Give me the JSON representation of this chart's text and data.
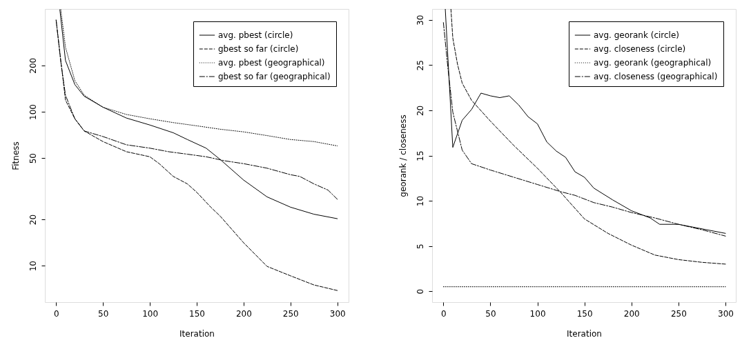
{
  "chart_data": [
    {
      "type": "line",
      "xlabel": "Iteration",
      "ylabel": "Fitness",
      "log": "y",
      "grid": false,
      "legend": "top right",
      "marker": "none",
      "xlim": [
        -12,
        312
      ],
      "ylim": [
        5.8,
        465
      ],
      "xticks": [
        0,
        50,
        100,
        150,
        200,
        250,
        300
      ],
      "yticks": [
        10,
        20,
        50,
        100,
        200
      ],
      "series": [
        {
          "name": "avg. pbest (circle)",
          "color": "#000000",
          "line_style": "solid",
          "x": [
            4,
            10,
            20,
            30,
            50,
            75,
            100,
            125,
            140,
            160,
            175,
            200,
            225,
            250,
            275,
            300
          ],
          "values": [
            460,
            215,
            150,
            126,
            107,
            91,
            82,
            73,
            66,
            58,
            49,
            36,
            28,
            24,
            21.6,
            20.2
          ]
        },
        {
          "name": "gbest so far (circle)",
          "color": "#000000",
          "line_style": "dashed",
          "x": [
            0,
            5,
            10,
            20,
            30,
            50,
            75,
            100,
            110,
            125,
            140,
            150,
            165,
            175,
            200,
            225,
            250,
            275,
            300
          ],
          "values": [
            394,
            215,
            119,
            90,
            75,
            64,
            55,
            51,
            46,
            38,
            34,
            30,
            24,
            21,
            14.1,
            9.9,
            8.6,
            7.5,
            6.9
          ]
        },
        {
          "name": "avg. pbest (geographical)",
          "color": "#000000",
          "line_style": "dotted",
          "x": [
            5,
            10,
            20,
            30,
            50,
            75,
            100,
            125,
            150,
            175,
            200,
            225,
            250,
            275,
            300
          ],
          "values": [
            460,
            262,
            159,
            128,
            107,
            96,
            90,
            85,
            81,
            77,
            74,
            70,
            66,
            64,
            60
          ]
        },
        {
          "name": "gbest so far (geographical)",
          "color": "#000000",
          "line_style": "dashdot",
          "x": [
            0,
            5,
            10,
            20,
            30,
            50,
            75,
            100,
            120,
            140,
            160,
            180,
            200,
            225,
            250,
            260,
            275,
            290,
            300
          ],
          "values": [
            394,
            211,
            128,
            90,
            75,
            69,
            61,
            58,
            55,
            53,
            51,
            48,
            46,
            43,
            39,
            38,
            34,
            31,
            27
          ]
        }
      ]
    },
    {
      "type": "line",
      "xlabel": "Iteration",
      "ylabel": "georank / closeness",
      "grid": false,
      "legend": "top right",
      "marker": "none",
      "xlim": [
        -12,
        311
      ],
      "ylim": [
        -1.2,
        31.2
      ],
      "xticks": [
        0,
        50,
        100,
        150,
        200,
        250,
        300
      ],
      "yticks": [
        0,
        5,
        10,
        15,
        20,
        25,
        30
      ],
      "series": [
        {
          "name": "avg. georank (circle)",
          "color": "#000000",
          "line_style": "solid",
          "x": [
            2,
            10,
            20,
            30,
            40,
            50,
            60,
            70,
            80,
            90,
            100,
            110,
            120,
            130,
            140,
            150,
            160,
            180,
            200,
            220,
            230,
            250,
            275,
            300
          ],
          "values": [
            31.2,
            15.9,
            18.9,
            20.1,
            21.9,
            21.6,
            21.4,
            21.6,
            20.6,
            19.3,
            18.5,
            16.5,
            15.5,
            14.8,
            13.2,
            12.6,
            11.4,
            10.1,
            8.9,
            8.1,
            7.4,
            7.4,
            6.9,
            6.4
          ]
        },
        {
          "name": "avg. closeness (circle)",
          "color": "#000000",
          "line_style": "dashed",
          "x": [
            8,
            10,
            15,
            20,
            30,
            50,
            75,
            100,
            125,
            150,
            175,
            200,
            225,
            250,
            275,
            300
          ],
          "values": [
            31.2,
            28,
            25.1,
            23,
            21.1,
            18.8,
            16.1,
            13.6,
            10.9,
            8.0,
            6.4,
            5.1,
            4.0,
            3.5,
            3.2,
            3.0
          ]
        },
        {
          "name": "avg. georank (geographical)",
          "color": "#000000",
          "line_style": "dotted",
          "x": [
            0,
            300
          ],
          "values": [
            0.5,
            0.5
          ]
        },
        {
          "name": "avg. closeness (geographical)",
          "color": "#000000",
          "line_style": "dashdot",
          "x": [
            0,
            5,
            10,
            20,
            30,
            50,
            75,
            100,
            125,
            140,
            160,
            180,
            200,
            225,
            250,
            275,
            300
          ],
          "values": [
            29.7,
            24.5,
            19.8,
            15.6,
            14.1,
            13.4,
            12.6,
            11.8,
            11.0,
            10.6,
            9.8,
            9.3,
            8.7,
            8.1,
            7.4,
            6.8,
            6.1
          ]
        }
      ]
    }
  ]
}
